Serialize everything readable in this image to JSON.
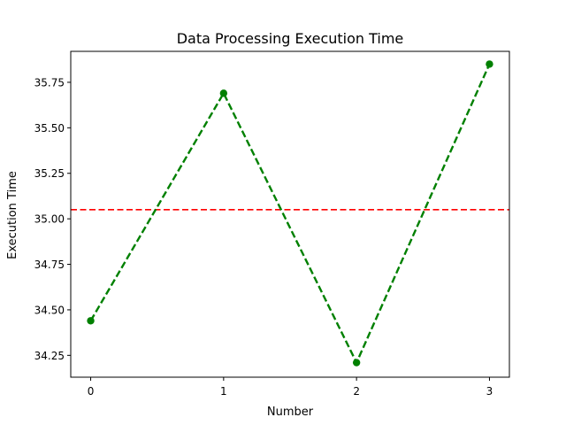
{
  "chart_data": {
    "type": "line",
    "title": "Data Processing Execution Time",
    "xlabel": "Number",
    "ylabel": "Execution Time",
    "x": [
      0,
      1,
      2,
      3
    ],
    "xticks": [
      "0",
      "1",
      "2",
      "3"
    ],
    "yticks": [
      "34.25",
      "34.50",
      "34.75",
      "35.00",
      "35.25",
      "35.50",
      "35.75"
    ],
    "xlim": [
      -0.15,
      3.15
    ],
    "ylim": [
      34.13,
      35.92
    ],
    "grid": false,
    "series": [
      {
        "values": [
          34.44,
          35.69,
          34.21,
          35.85
        ],
        "color": "#008000",
        "line_style": "dashed",
        "marker": "circle"
      }
    ],
    "reference_line": {
      "orientation": "horizontal",
      "value": 35.05,
      "color": "#ff0000",
      "line_style": "dashed"
    }
  }
}
